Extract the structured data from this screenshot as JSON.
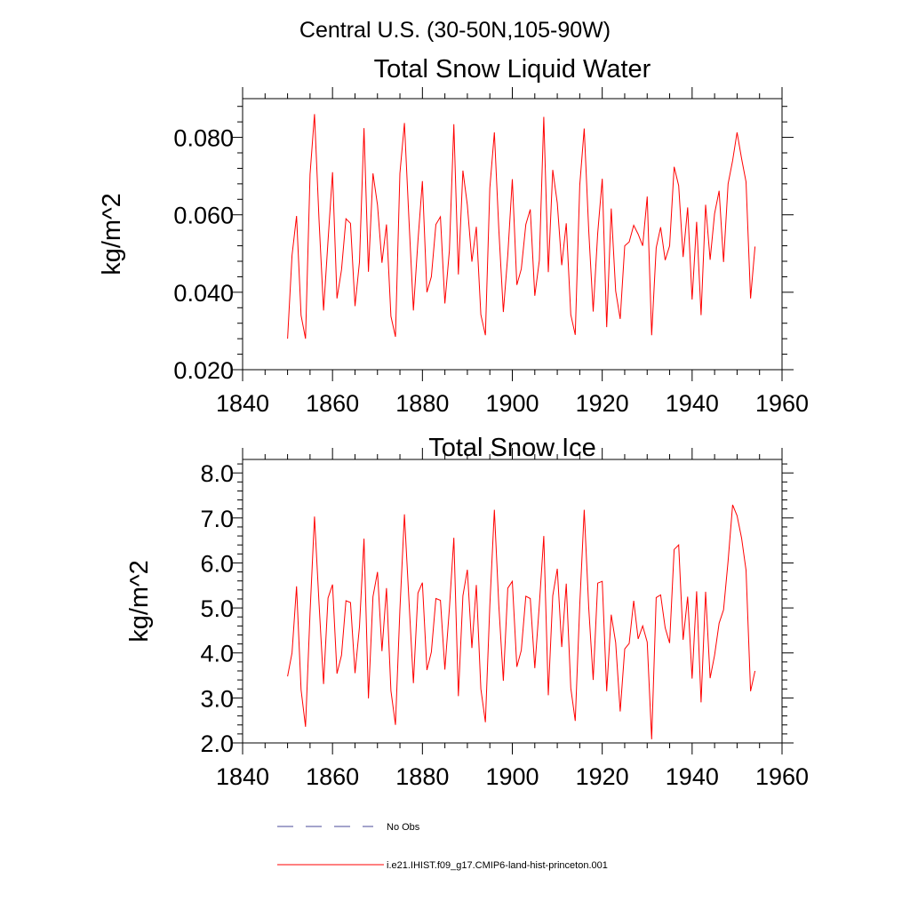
{
  "page": {
    "super_title": "Central U.S. (30-50N,105-90W)"
  },
  "colors": {
    "series": "#ff0000",
    "obs": "#4a4a9a",
    "axes": "#000000",
    "background": "#ffffff"
  },
  "legend": {
    "obs_label": "No Obs",
    "model_label": "i.e21.IHIST.f09_g17.CMIP6-land-hist-princeton.001"
  },
  "chart_data": [
    {
      "type": "line",
      "title": "Total Snow Liquid Water",
      "xlabel": "",
      "ylabel": "kg/m^2",
      "xlim": [
        1840,
        1960
      ],
      "ylim": [
        0.02,
        0.09
      ],
      "xticks": [
        1840,
        1860,
        1880,
        1900,
        1920,
        1940,
        1960
      ],
      "xtick_labels": [
        "1840",
        "1860",
        "1880",
        "1900",
        "1920",
        "1940",
        "1960"
      ],
      "yticks": [
        0.02,
        0.04,
        0.06,
        0.08
      ],
      "ytick_labels": [
        "0.020",
        "0.040",
        "0.060",
        "0.080"
      ],
      "grid": false,
      "series": [
        {
          "label": "i.e21.IHIST.f09_g17.CMIP6-land-hist-princeton.001",
          "x": [
            1850,
            1851,
            1852,
            1853,
            1854,
            1855,
            1856,
            1857,
            1858,
            1859,
            1860,
            1861,
            1862,
            1863,
            1864,
            1865,
            1866,
            1867,
            1868,
            1869,
            1870,
            1871,
            1872,
            1873,
            1874,
            1875,
            1876,
            1877,
            1878,
            1879,
            1880,
            1881,
            1882,
            1883,
            1884,
            1885,
            1886,
            1887,
            1888,
            1889,
            1890,
            1891,
            1892,
            1893,
            1894,
            1895,
            1896,
            1897,
            1898,
            1899,
            1900,
            1901,
            1902,
            1903,
            1904,
            1905,
            1906,
            1907,
            1908,
            1909,
            1910,
            1911,
            1912,
            1913,
            1914,
            1915,
            1916,
            1917,
            1918,
            1919,
            1920,
            1921,
            1922,
            1923,
            1924,
            1925,
            1926,
            1927,
            1928,
            1929,
            1930,
            1931,
            1932,
            1933,
            1934,
            1935,
            1936,
            1937,
            1938,
            1939,
            1940,
            1941,
            1942,
            1943,
            1944,
            1945,
            1946,
            1947,
            1948,
            1949,
            1950,
            1951,
            1952,
            1953,
            1954
          ],
          "y": [
            0.028,
            0.0495,
            0.0597,
            0.034,
            0.028,
            0.0705,
            0.086,
            0.0587,
            0.0353,
            0.0532,
            0.071,
            0.0384,
            0.0458,
            0.059,
            0.0578,
            0.0364,
            0.0478,
            0.0824,
            0.0453,
            0.0707,
            0.0625,
            0.0476,
            0.0575,
            0.0338,
            0.0285,
            0.0707,
            0.0837,
            0.0587,
            0.0353,
            0.0532,
            0.0687,
            0.04,
            0.044,
            0.0575,
            0.0595,
            0.0371,
            0.0508,
            0.0834,
            0.0446,
            0.0714,
            0.0625,
            0.0479,
            0.0569,
            0.0342,
            0.0289,
            0.0669,
            0.0813,
            0.0563,
            0.0349,
            0.0496,
            0.0692,
            0.0419,
            0.046,
            0.0575,
            0.0614,
            0.0391,
            0.0482,
            0.0853,
            0.0452,
            0.0716,
            0.063,
            0.047,
            0.0578,
            0.0342,
            0.029,
            0.0677,
            0.0823,
            0.0559,
            0.035,
            0.0553,
            0.0693,
            0.031,
            0.0616,
            0.0403,
            0.0331,
            0.052,
            0.053,
            0.0573,
            0.055,
            0.052,
            0.0647,
            0.0289,
            0.0515,
            0.0568,
            0.0483,
            0.052,
            0.0724,
            0.0675,
            0.0491,
            0.0619,
            0.0381,
            0.0582,
            0.0341,
            0.0626,
            0.0484,
            0.0603,
            0.0662,
            0.0478,
            0.068,
            0.074,
            0.0813,
            0.0745,
            0.0685,
            0.0384,
            0.0518
          ]
        }
      ]
    },
    {
      "type": "line",
      "title": "Total Snow Ice",
      "xlabel": "",
      "ylabel": "kg/m^2",
      "xlim": [
        1840,
        1960
      ],
      "ylim": [
        2.0,
        8.3
      ],
      "xticks": [
        1840,
        1860,
        1880,
        1900,
        1920,
        1940,
        1960
      ],
      "xtick_labels": [
        "1840",
        "1860",
        "1880",
        "1900",
        "1920",
        "1940",
        "1960"
      ],
      "yticks": [
        2.0,
        3.0,
        4.0,
        5.0,
        6.0,
        7.0,
        8.0
      ],
      "ytick_labels": [
        "2.0",
        "3.0",
        "4.0",
        "5.0",
        "6.0",
        "7.0",
        "8.0"
      ],
      "grid": false,
      "series": [
        {
          "label": "i.e21.IHIST.f09_g17.CMIP6-land-hist-princeton.001",
          "x": [
            1850,
            1851,
            1852,
            1853,
            1854,
            1855,
            1856,
            1857,
            1858,
            1859,
            1860,
            1861,
            1862,
            1863,
            1864,
            1865,
            1866,
            1867,
            1868,
            1869,
            1870,
            1871,
            1872,
            1873,
            1874,
            1875,
            1876,
            1877,
            1878,
            1879,
            1880,
            1881,
            1882,
            1883,
            1884,
            1885,
            1886,
            1887,
            1888,
            1889,
            1890,
            1891,
            1892,
            1893,
            1894,
            1895,
            1896,
            1897,
            1898,
            1899,
            1900,
            1901,
            1902,
            1903,
            1904,
            1905,
            1906,
            1907,
            1908,
            1909,
            1910,
            1911,
            1912,
            1913,
            1914,
            1915,
            1916,
            1917,
            1918,
            1919,
            1920,
            1921,
            1922,
            1923,
            1924,
            1925,
            1926,
            1927,
            1928,
            1929,
            1930,
            1931,
            1932,
            1933,
            1934,
            1935,
            1936,
            1937,
            1938,
            1939,
            1940,
            1941,
            1942,
            1943,
            1944,
            1945,
            1946,
            1947,
            1948,
            1949,
            1950,
            1951,
            1952,
            1953,
            1954
          ],
          "y": [
            3.48,
            4.0,
            5.48,
            3.18,
            2.36,
            4.9,
            7.03,
            5.1,
            3.31,
            5.22,
            5.52,
            3.54,
            3.95,
            5.16,
            5.12,
            3.55,
            4.58,
            6.54,
            2.99,
            5.25,
            5.8,
            4.04,
            5.44,
            3.16,
            2.4,
            4.96,
            7.08,
            5.16,
            3.33,
            5.33,
            5.56,
            3.62,
            4.02,
            5.21,
            5.17,
            3.63,
            4.99,
            6.56,
            3.04,
            5.27,
            5.85,
            4.11,
            5.51,
            3.2,
            2.46,
            5.06,
            7.18,
            5.06,
            3.38,
            5.44,
            5.59,
            3.69,
            4.06,
            5.26,
            5.21,
            3.66,
            5.07,
            6.6,
            3.06,
            5.27,
            5.87,
            4.13,
            5.54,
            3.22,
            2.49,
            5.07,
            7.18,
            5.0,
            3.4,
            5.55,
            5.59,
            3.15,
            4.85,
            4.23,
            2.7,
            4.09,
            4.21,
            5.16,
            4.31,
            4.6,
            4.24,
            2.08,
            5.23,
            5.29,
            4.56,
            4.22,
            6.3,
            6.4,
            4.29,
            5.25,
            3.43,
            5.37,
            2.9,
            5.36,
            3.44,
            3.95,
            4.66,
            4.96,
            6.04,
            7.29,
            7.05,
            6.55,
            5.84,
            3.15,
            3.6
          ]
        }
      ]
    }
  ]
}
